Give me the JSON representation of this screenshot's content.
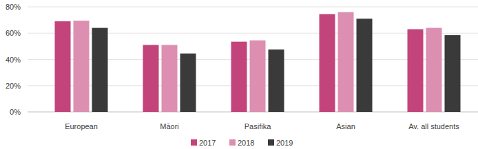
{
  "chart_data": {
    "type": "bar",
    "categories": [
      "European",
      "Māori",
      "Pasifika",
      "Asian",
      "Av. all students"
    ],
    "series": [
      {
        "name": "2017",
        "color": "#c2447a",
        "values": [
          69,
          51,
          53.5,
          74.5,
          63
        ]
      },
      {
        "name": "2018",
        "color": "#dc8fb1",
        "values": [
          69.5,
          51,
          54.5,
          76,
          64
        ]
      },
      {
        "name": "2019",
        "color": "#3a3a3a",
        "values": [
          64,
          44.5,
          47.5,
          71,
          58.5
        ]
      }
    ],
    "ylim": [
      0,
      80
    ],
    "yticks": [
      {
        "value": 0,
        "label": "0%"
      },
      {
        "value": 20,
        "label": "20%"
      },
      {
        "value": 40,
        "label": "40%"
      },
      {
        "value": 60,
        "label": "60%"
      },
      {
        "value": 80,
        "label": "80%"
      }
    ],
    "grid": true,
    "legend": "bottom"
  }
}
